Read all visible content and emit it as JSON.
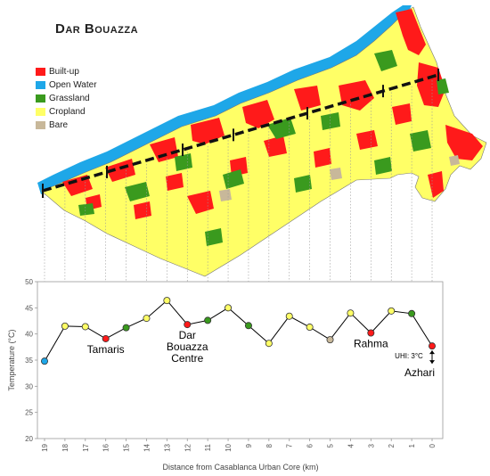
{
  "map": {
    "title": "Dar Bouazza",
    "legend": [
      {
        "label": "Built-up",
        "color": "#ff1a1a"
      },
      {
        "label": "Open Water",
        "color": "#1ea7e8"
      },
      {
        "label": "Grassland",
        "color": "#3a9a1e"
      },
      {
        "label": "Cropland",
        "color": "#ffff66"
      },
      {
        "label": "Bare",
        "color": "#c8b89a"
      }
    ]
  },
  "chart_data": {
    "type": "line",
    "xlabel": "Distance from Casablanca Urban Core (km)",
    "ylabel": "Temperature (°C)",
    "xlim": [
      19,
      0
    ],
    "ylim": [
      20,
      50
    ],
    "yticks": [
      20,
      25,
      30,
      35,
      40,
      45,
      50
    ],
    "x": [
      19,
      18,
      17,
      16,
      15,
      14,
      13,
      12,
      11,
      10,
      9,
      8,
      7,
      6,
      5,
      4,
      3,
      2,
      1,
      0
    ],
    "y": [
      34.8,
      41.5,
      41.4,
      39.1,
      41.2,
      43.0,
      46.4,
      41.8,
      42.6,
      45.0,
      41.6,
      38.2,
      43.4,
      41.3,
      38.9,
      44.0,
      40.2,
      44.4,
      43.9,
      37.7
    ],
    "point_colors": [
      "#1ea7e8",
      "#ffff66",
      "#ffff66",
      "#ff1a1a",
      "#3a9a1e",
      "#ffff66",
      "#ffff66",
      "#ff1a1a",
      "#3a9a1e",
      "#ffff66",
      "#3a9a1e",
      "#ffff66",
      "#ffff66",
      "#ffff66",
      "#c8b89a",
      "#ffff66",
      "#ff1a1a",
      "#ffff66",
      "#3a9a1e",
      "#ff1a1a"
    ],
    "annotations": [
      {
        "text": "Tamaris",
        "x": 16,
        "y": 39.1
      },
      {
        "text": "Dar",
        "x": 12,
        "y": 41.8
      },
      {
        "text": "Bouazza",
        "x": 12,
        "y": 41.8
      },
      {
        "text": "Centre",
        "x": 12,
        "y": 41.8
      },
      {
        "text": "Rahma",
        "x": 3,
        "y": 40.2
      },
      {
        "text": "UHI: 3°C",
        "x": 0,
        "y": 37.7
      },
      {
        "text": "Azhari",
        "x": 0,
        "y": 37.7
      }
    ],
    "grid": false
  }
}
